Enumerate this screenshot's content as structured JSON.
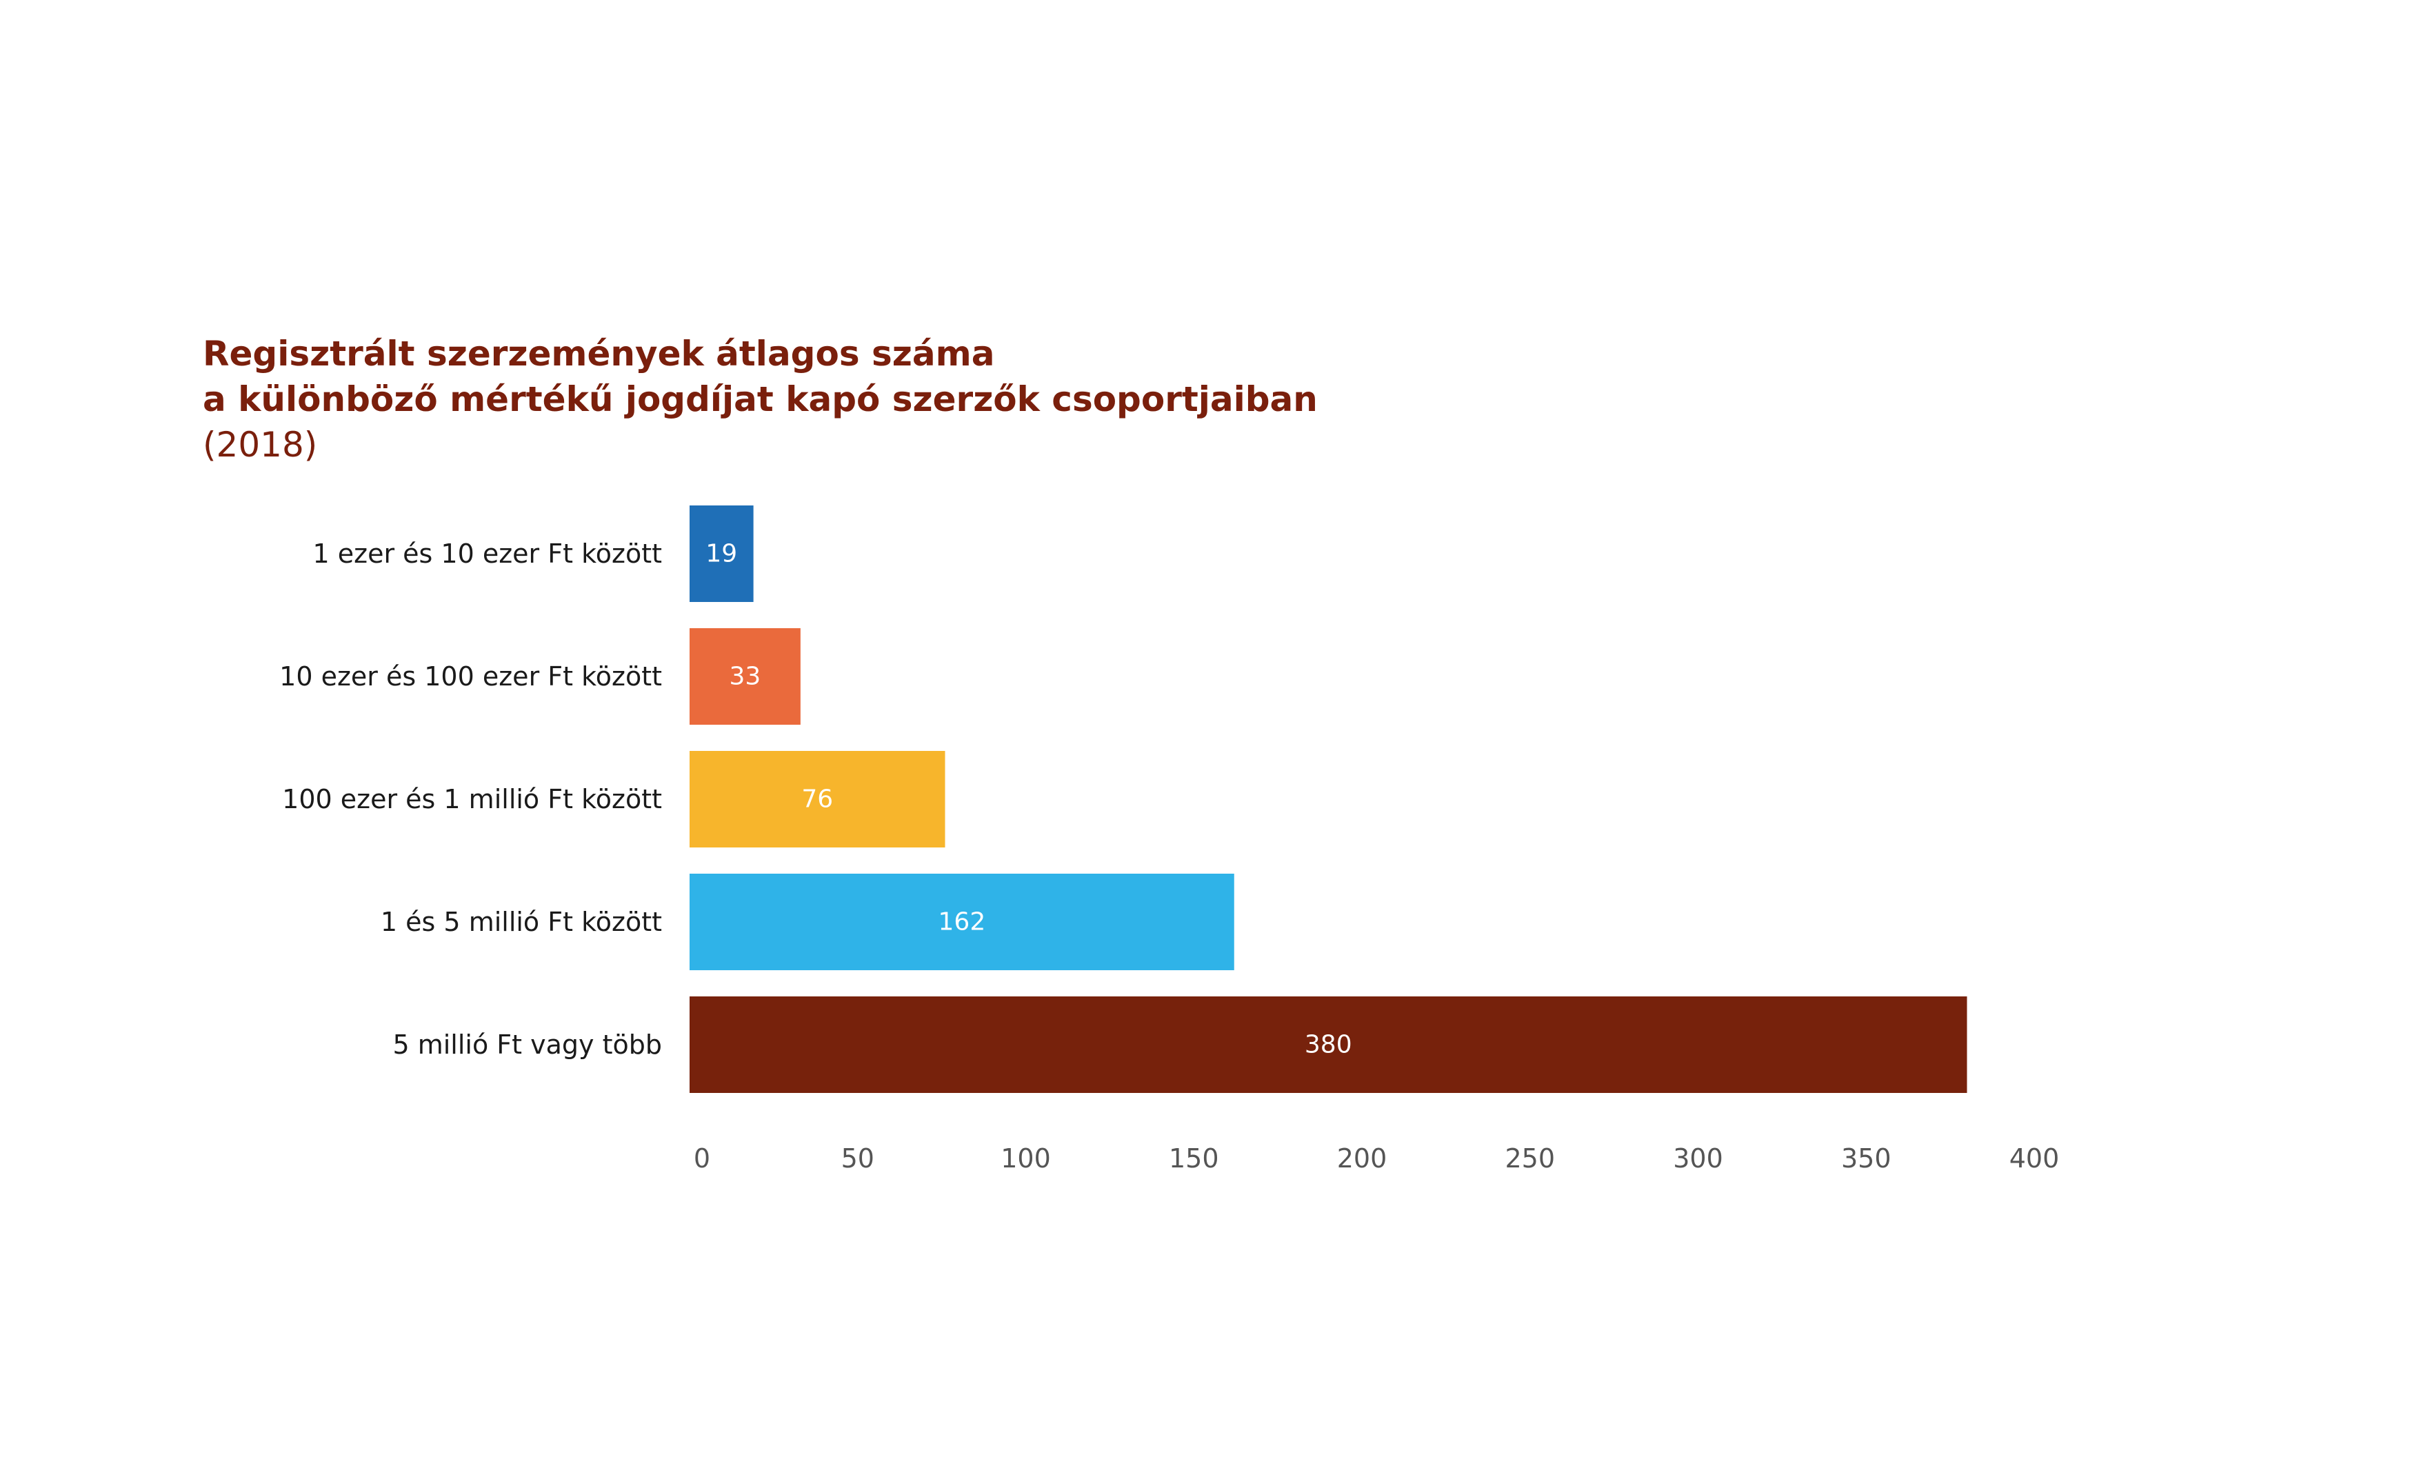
{
  "title": {
    "line1": "Regisztrált szerzemények átlagos száma",
    "line2": "a különböző mértékű jogdíjat kapó szerzők csoportjaiban",
    "subtitle": "(2018)"
  },
  "chart_data": {
    "type": "bar",
    "orientation": "horizontal",
    "categories": [
      "1 ezer és 10 ezer Ft között",
      "10 ezer és 100 ezer Ft között",
      "100 ezer és 1 millió Ft között",
      "1 és 5 millió Ft között",
      "5 millió Ft vagy több"
    ],
    "values": [
      19,
      33,
      76,
      162,
      380
    ],
    "colors": [
      "#1f6fb7",
      "#ea6a3c",
      "#f7b52c",
      "#2fb3e8",
      "#77220c"
    ],
    "xlim": [
      0,
      400
    ],
    "xticks": [
      0,
      50,
      100,
      150,
      200,
      250,
      300,
      350,
      400
    ],
    "grid": false,
    "legend": "none",
    "data_labels": true
  }
}
